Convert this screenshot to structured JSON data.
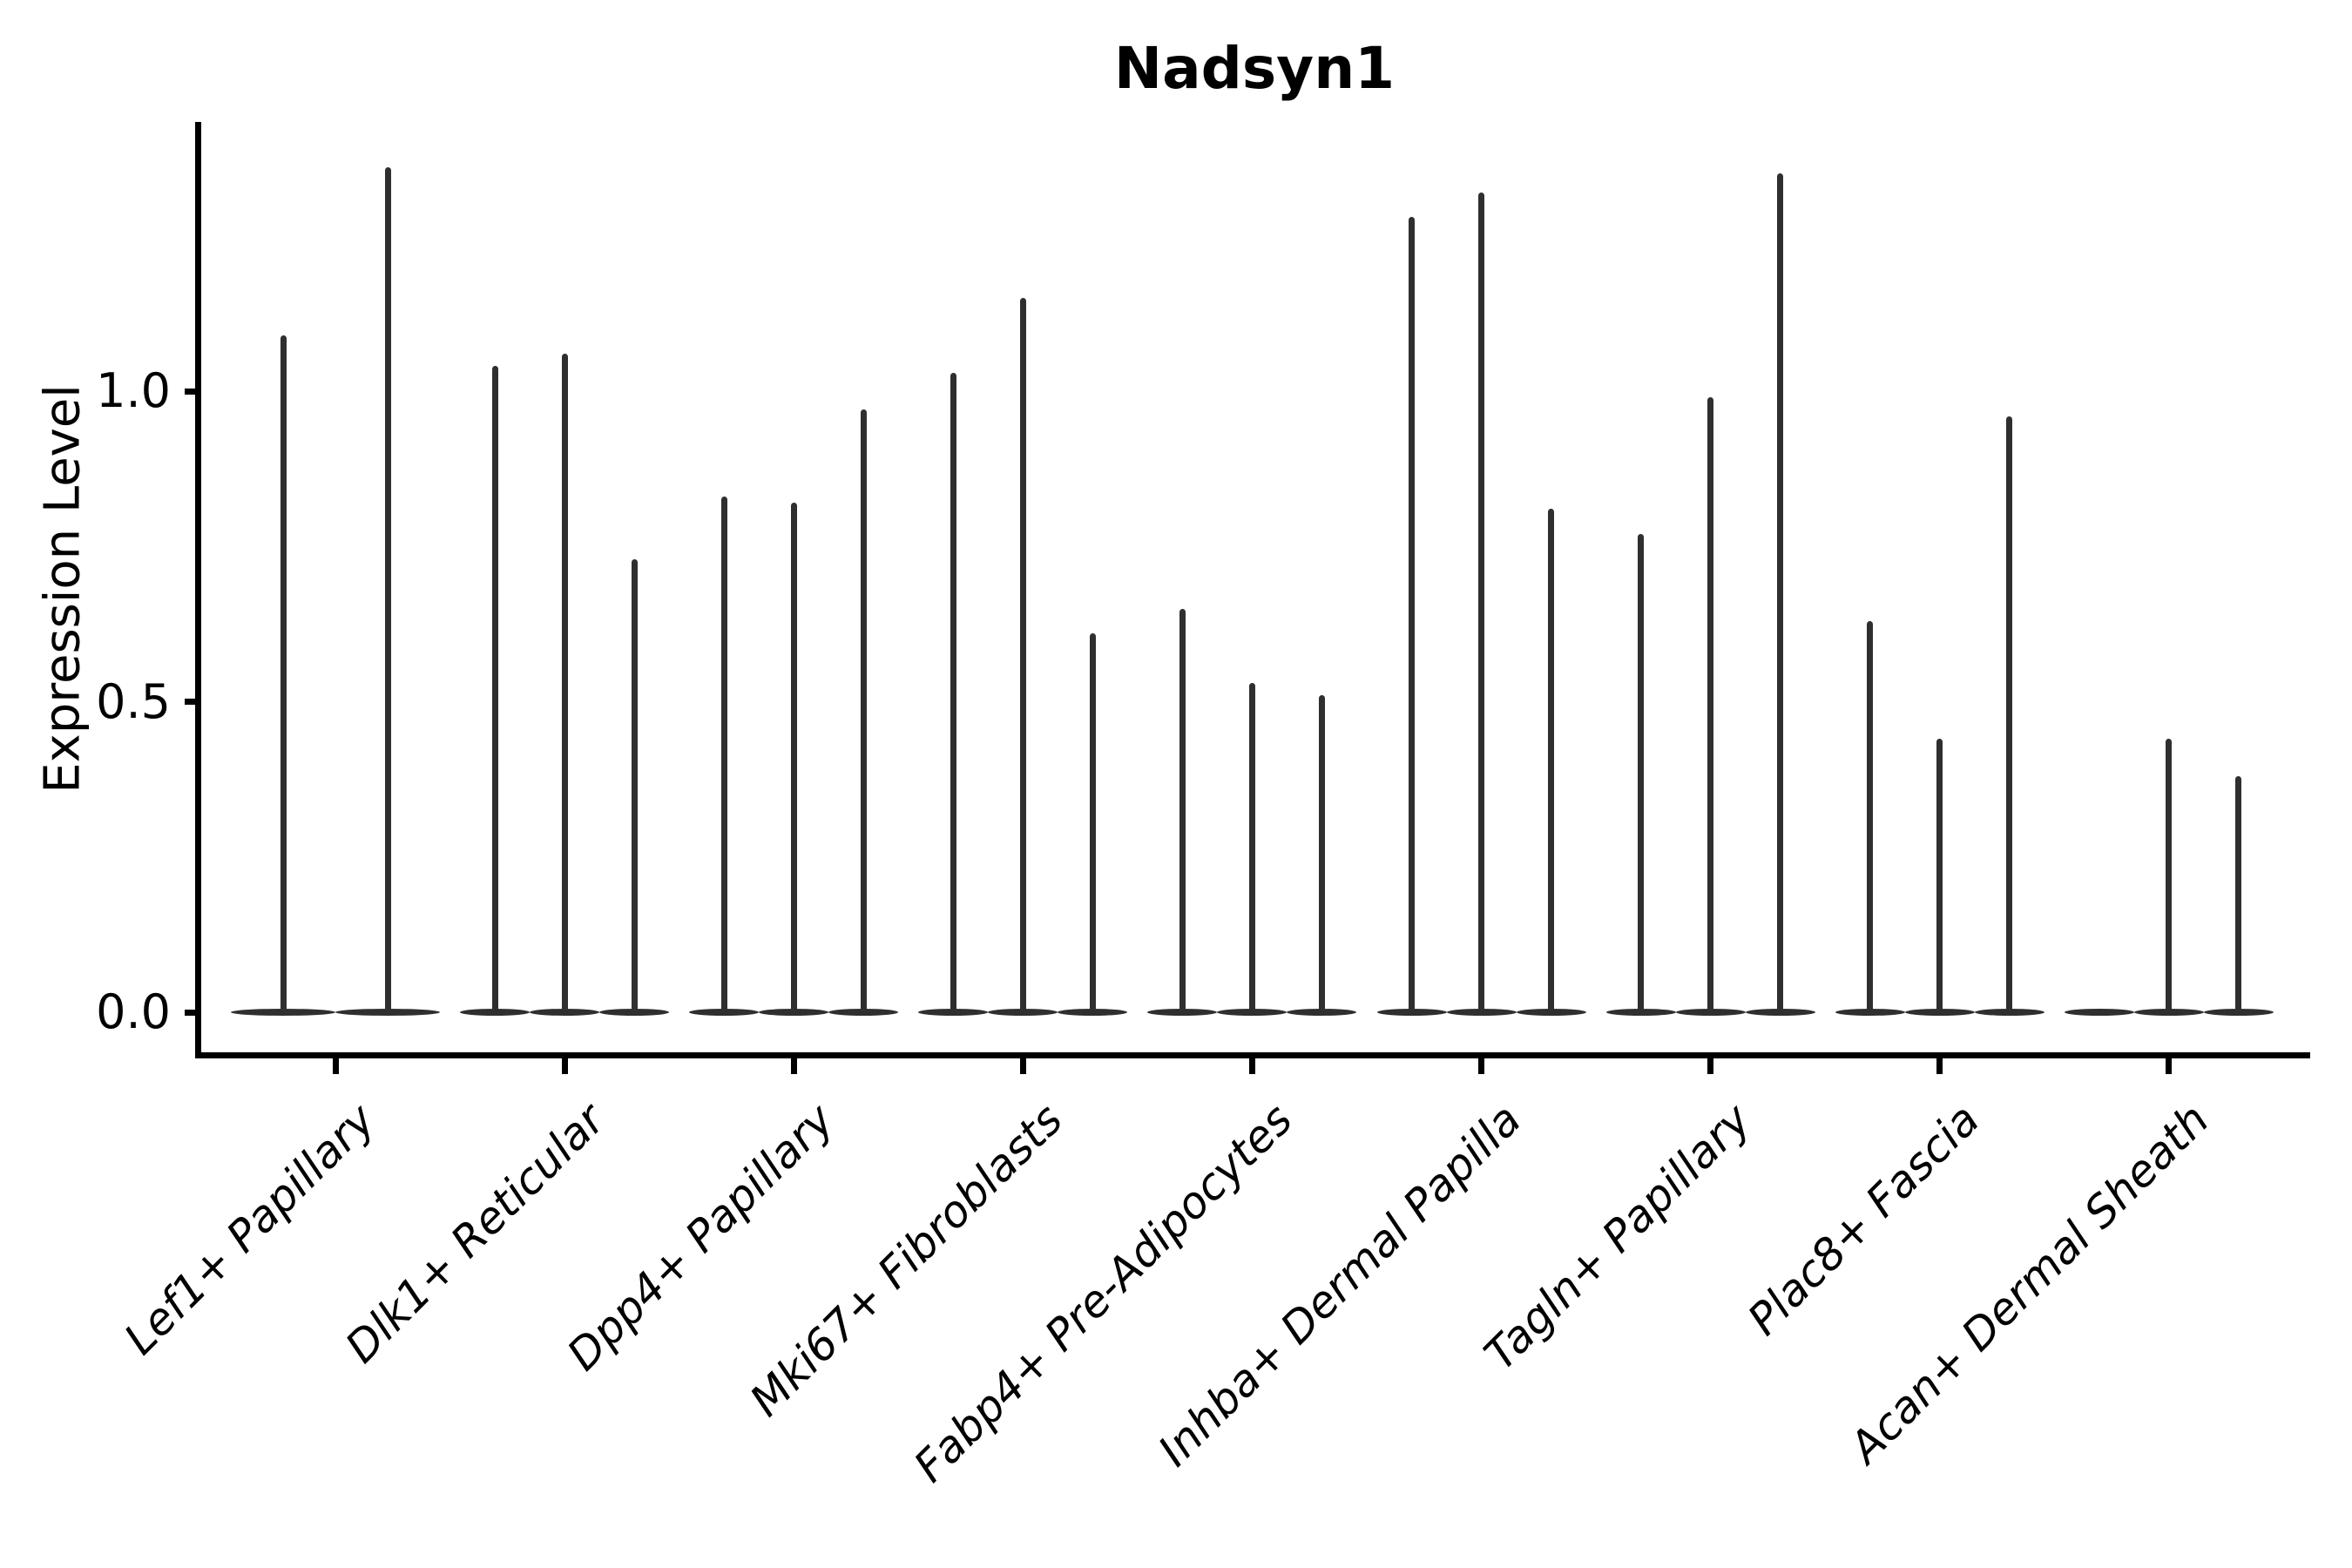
{
  "title": "Nadsyn1",
  "y_axis": {
    "label": "Expression Level",
    "tick_labels": [
      "0.0",
      "0.5",
      "1.0"
    ],
    "tick_values": [
      0.0,
      0.5,
      1.0
    ]
  },
  "x_axis": {
    "tick_labels": [
      "Lef1+ Papillary",
      "Dlk1+ Reticular",
      "Dpp4+ Papillary",
      "Mki67+ Fibroblasts",
      "Fabp4+ Pre-Adipocytes",
      "Inhba+ Dermal Papilla",
      "Tagln+ Papillary",
      "Plac8+ Fascia",
      "Acan+ Dermal Sheath"
    ]
  },
  "chart_data": {
    "type": "violin",
    "title": "Nadsyn1",
    "ylabel": "Expression Level",
    "xlabel": "",
    "ylim": [
      -0.07,
      1.43
    ],
    "yticks": [
      0.0,
      0.5,
      1.0
    ],
    "grid": false,
    "legend": false,
    "categories": [
      "Lef1+ Papillary",
      "Dlk1+ Reticular",
      "Dpp4+ Papillary",
      "Mki67+ Fibroblasts",
      "Fabp4+ Pre-Adipocytes",
      "Inhba+ Dermal Papilla",
      "Tagln+ Papillary",
      "Plac8+ Fascia",
      "Acan+ Dermal Sheath"
    ],
    "groups": [
      {
        "category": "Lef1+ Papillary",
        "violin_peaks": [
          1.09,
          1.36
        ]
      },
      {
        "category": "Dlk1+ Reticular",
        "violin_peaks": [
          1.04,
          1.06,
          0.73
        ]
      },
      {
        "category": "Dpp4+ Papillary",
        "violin_peaks": [
          0.83,
          0.82,
          0.97
        ]
      },
      {
        "category": "Mki67+ Fibroblasts",
        "violin_peaks": [
          1.03,
          1.15,
          0.61
        ]
      },
      {
        "category": "Fabp4+ Pre-Adipocytes",
        "violin_peaks": [
          0.65,
          0.53,
          0.51
        ]
      },
      {
        "category": "Inhba+ Dermal Papilla",
        "violin_peaks": [
          1.28,
          1.32,
          0.81
        ]
      },
      {
        "category": "Tagln+ Papillary",
        "violin_peaks": [
          0.77,
          0.99,
          1.35
        ]
      },
      {
        "category": "Plac8+ Fascia",
        "violin_peaks": [
          0.63,
          0.44,
          0.96
        ]
      },
      {
        "category": "Acan+ Dermal Sheath",
        "violin_peaks": [
          0.0,
          0.44,
          0.38
        ]
      }
    ],
    "style_note": "Each category contains narrow spike-shaped violins (one per sample); peak = maximum expression reached by the spike; every violin has a flat density lens at expression 0; a peak of 0 means a fully flat violin."
  },
  "colors": {
    "background": "#ffffff",
    "violin": "#2f2f2f",
    "axis": "#000000",
    "text": "#000000"
  }
}
